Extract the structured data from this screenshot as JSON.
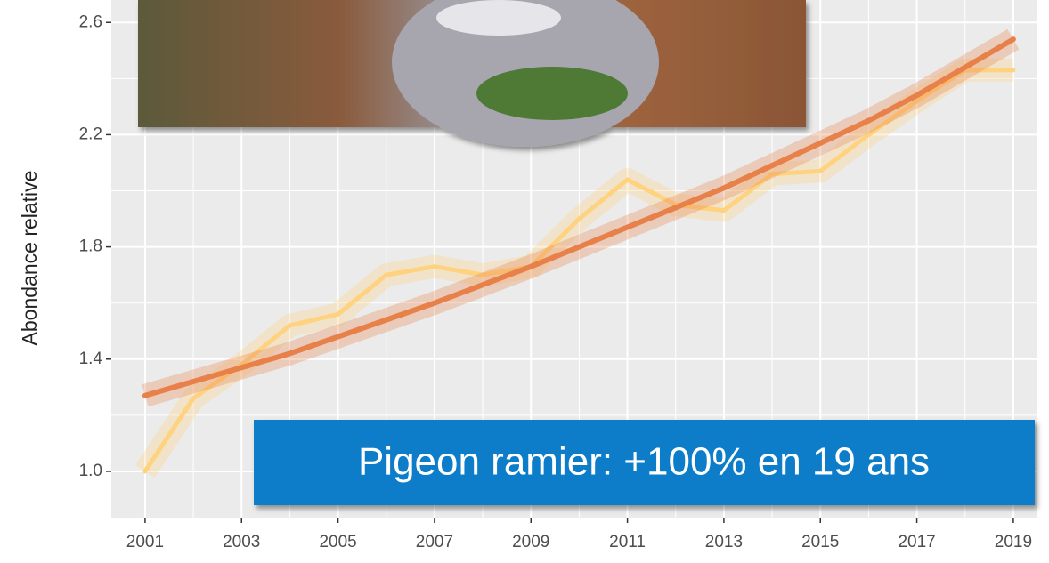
{
  "chart_data": {
    "type": "line",
    "y_label": "Abondance relative",
    "annotation": "Pigeon ramier: +100% en 19 ans",
    "x": [
      2001,
      2002,
      2003,
      2004,
      2005,
      2006,
      2007,
      2008,
      2009,
      2010,
      2011,
      2012,
      2013,
      2014,
      2015,
      2016,
      2017,
      2018,
      2019
    ],
    "series": [
      {
        "color": "#ffd27f",
        "values": [
          1.0,
          1.26,
          1.38,
          1.52,
          1.56,
          1.7,
          1.73,
          1.7,
          1.73,
          1.9,
          2.04,
          1.95,
          1.93,
          2.06,
          2.07,
          2.2,
          2.32,
          2.43,
          2.43
        ]
      },
      {
        "color": "#e8804a",
        "values": [
          1.27,
          1.32,
          1.37,
          1.42,
          1.48,
          1.54,
          1.6,
          1.665,
          1.73,
          1.8,
          1.87,
          1.94,
          2.01,
          2.09,
          2.17,
          2.25,
          2.34,
          2.44,
          2.54
        ]
      }
    ],
    "xlim": [
      2000.3,
      2019.5
    ],
    "xticks": [
      2001,
      2003,
      2005,
      2007,
      2009,
      2011,
      2013,
      2015,
      2017,
      2019
    ],
    "ylim": [
      0.835,
      2.68
    ],
    "yticks": [
      {
        "value": 1,
        "label": "1.0"
      },
      1.4,
      1.8,
      2.2,
      2.6
    ],
    "grid": true
  }
}
